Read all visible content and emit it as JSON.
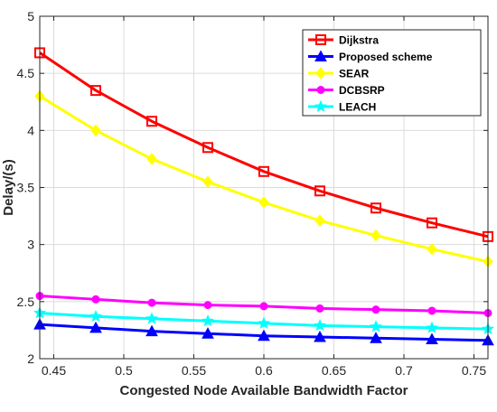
{
  "chart_data": {
    "type": "line",
    "title": "",
    "xlabel": "Congested Node Available Bandwidth Factor",
    "ylabel": "Delay/(s)",
    "xlim": [
      0.44,
      0.76
    ],
    "ylim": [
      2,
      5
    ],
    "grid": true,
    "legend_position": "top-right",
    "x": [
      0.44,
      0.48,
      0.52,
      0.56,
      0.6,
      0.64,
      0.68,
      0.72,
      0.76
    ],
    "x_ticks": [
      "0.45",
      "0.5",
      "0.55",
      "0.6",
      "0.65",
      "0.7",
      "0.75"
    ],
    "x_tick_values": [
      0.45,
      0.5,
      0.55,
      0.6,
      0.65,
      0.7,
      0.75
    ],
    "y_ticks": [
      "2",
      "2.5",
      "3",
      "3.5",
      "4",
      "4.5",
      "5"
    ],
    "y_tick_values": [
      2,
      2.5,
      3,
      3.5,
      4,
      4.5,
      5
    ],
    "series": [
      {
        "name": "Dijkstra",
        "color": "#ff0000",
        "marker": "square",
        "values": [
          4.68,
          4.35,
          4.08,
          3.85,
          3.64,
          3.47,
          3.32,
          3.19,
          3.07
        ]
      },
      {
        "name": "Proposed scheme",
        "color": "#0000ff",
        "marker": "triangle",
        "values": [
          2.3,
          2.27,
          2.24,
          2.22,
          2.2,
          2.19,
          2.18,
          2.17,
          2.16
        ]
      },
      {
        "name": "SEAR",
        "color": "#ffff00",
        "marker": "diamond",
        "values": [
          4.3,
          4.0,
          3.75,
          3.55,
          3.37,
          3.21,
          3.08,
          2.96,
          2.85
        ]
      },
      {
        "name": "DCBSRP",
        "color": "#ff00ff",
        "marker": "circle",
        "values": [
          2.55,
          2.52,
          2.49,
          2.47,
          2.46,
          2.44,
          2.43,
          2.42,
          2.4
        ]
      },
      {
        "name": "LEACH",
        "color": "#00ffff",
        "marker": "star",
        "values": [
          2.4,
          2.37,
          2.35,
          2.33,
          2.31,
          2.29,
          2.28,
          2.27,
          2.26
        ]
      }
    ]
  }
}
